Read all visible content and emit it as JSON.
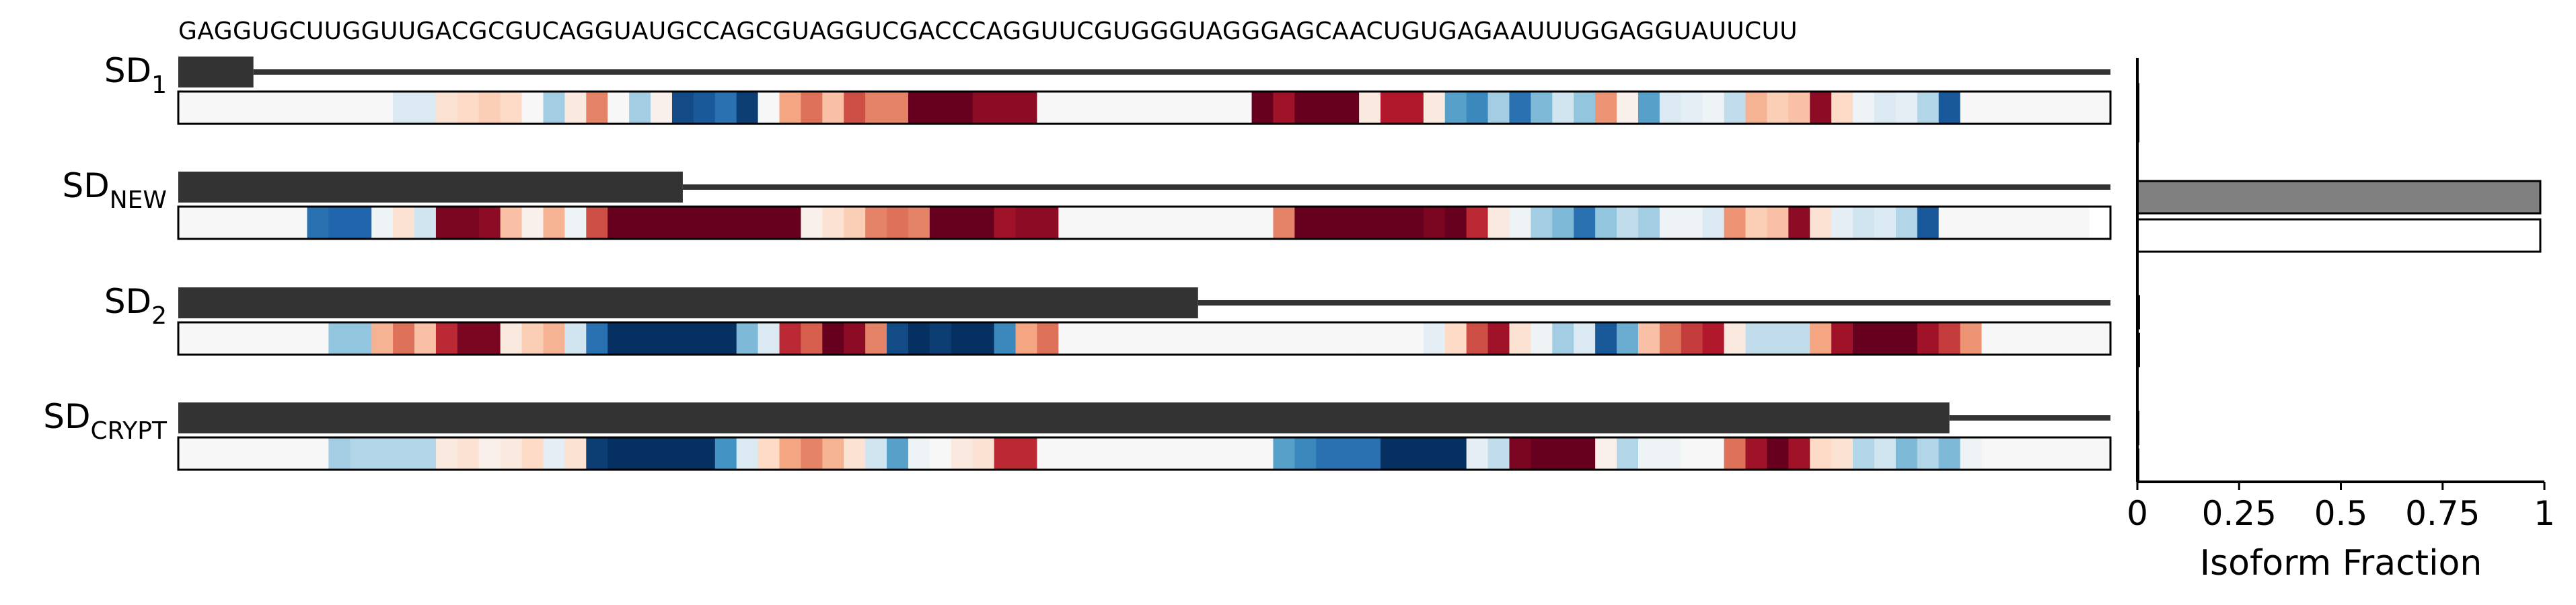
{
  "chart_data": [
    {
      "type": "heatmap",
      "sequence": "GAGGUGCUUGGUUGACGCGUCAGGUAUGCCAGCGUAGGUCGACCCAGGUUCGUGGGUAGGGAGCAACUGUGAGAAUUUGGAGGUAUUCUU",
      "rows": [
        {
          "label_main": "SD",
          "label_sub": "1",
          "exon_end_index": 3,
          "heat_values": [
            0,
            0,
            0,
            0,
            0,
            0,
            0,
            0,
            0,
            0,
            -0.15,
            -0.15,
            0.15,
            0.2,
            0.25,
            0.2,
            0,
            -0.35,
            0.1,
            0.5,
            0,
            -0.35,
            0.05,
            -0.9,
            -0.85,
            -0.75,
            -0.95,
            0,
            0.4,
            0.55,
            0.3,
            0.65,
            0.5,
            0.5,
            1,
            1,
            1,
            0.9,
            0.9,
            0.9,
            0,
            0,
            0,
            0,
            0,
            0,
            0,
            0,
            0,
            0,
            1,
            0.85,
            1,
            1,
            1,
            0.1,
            0.8,
            0.8,
            0.1,
            -0.55,
            -0.65,
            -0.35,
            -0.75,
            -0.45,
            -0.2,
            -0.4,
            0.45,
            0.05,
            -0.55,
            -0.15,
            -0.1,
            -0.05,
            -0.25,
            0.35,
            0.25,
            0.3,
            0.9,
            0.2,
            -0.05,
            -0.15,
            -0.1,
            -0.3,
            -0.85,
            0,
            0,
            0,
            0,
            0,
            0,
            0
          ]
        },
        {
          "label_main": "SD",
          "label_sub": "NEW",
          "exon_end_index": 23,
          "heat_values": [
            0,
            0,
            0,
            0,
            0,
            0,
            -0.75,
            -0.8,
            -0.8,
            -0.05,
            0.15,
            -0.2,
            0.95,
            0.95,
            0.9,
            0.3,
            0.05,
            0.35,
            -0.05,
            0.65,
            1,
            1,
            1,
            1,
            1,
            1,
            1,
            1,
            1,
            0.05,
            0.15,
            0.25,
            0.5,
            0.55,
            0.5,
            1,
            1,
            1,
            0.85,
            0.9,
            0.9,
            0,
            0,
            0,
            0,
            0,
            0,
            0,
            0,
            0,
            0,
            0.5,
            1,
            1,
            1,
            1,
            1,
            1,
            0.95,
            1,
            0.75,
            0.1,
            -0.05,
            -0.35,
            -0.45,
            -0.75,
            -0.4,
            -0.25,
            -0.35,
            -0.05,
            -0.05,
            -0.15,
            0.45,
            0.25,
            0.3,
            0.9,
            0.15,
            -0.1,
            -0.2,
            -0.15,
            -0.3,
            -0.85,
            0,
            0,
            0,
            0,
            0,
            0,
            0
          ]
        },
        {
          "label_main": "SD",
          "label_sub": "2",
          "exon_end_index": 47,
          "heat_values": [
            0,
            0,
            0,
            0,
            0,
            0,
            0,
            -0.4,
            -0.4,
            0.35,
            0.55,
            0.3,
            0.75,
            0.95,
            0.95,
            0.1,
            0.25,
            0.35,
            -0.2,
            -0.75,
            -1,
            -1,
            -1,
            -1,
            -1,
            -1,
            -0.45,
            -0.15,
            0.75,
            0.6,
            1,
            0.9,
            0.5,
            -0.9,
            -1,
            -0.95,
            -1,
            -1,
            -0.65,
            0.4,
            0.55,
            0,
            0,
            0,
            0,
            0,
            0,
            0,
            0,
            0,
            0,
            0,
            0,
            0,
            0,
            0,
            0,
            0,
            -0.1,
            0.2,
            0.65,
            0.85,
            0.15,
            -0.05,
            -0.35,
            -0.15,
            -0.85,
            -0.5,
            0.3,
            0.55,
            0.7,
            0.8,
            0.1,
            -0.25,
            -0.25,
            -0.25,
            0.4,
            0.85,
            1,
            1,
            1,
            0.85,
            0.7,
            0.45,
            0,
            0,
            0,
            0,
            0,
            0
          ]
        },
        {
          "label_main": "SD",
          "label_sub": "CRYPT",
          "exon_end_index": 82,
          "heat_values": [
            0,
            0,
            0,
            0,
            0,
            0,
            0,
            -0.35,
            -0.3,
            -0.3,
            -0.3,
            -0.3,
            0.1,
            0.15,
            0.05,
            0.1,
            0.2,
            -0.1,
            0.15,
            -0.95,
            -1,
            -1,
            -1,
            -1,
            -1,
            -0.6,
            -0.15,
            0.2,
            0.4,
            0.5,
            0.35,
            0.15,
            -0.2,
            -0.55,
            -0.05,
            0,
            0.1,
            0.15,
            0.75,
            0.75,
            0,
            0,
            0,
            0,
            0,
            0,
            0,
            0,
            0,
            0,
            0,
            -0.55,
            -0.65,
            -0.75,
            -0.75,
            -0.75,
            -1,
            -1,
            -1,
            -1,
            -0.1,
            -0.25,
            0.95,
            1,
            1,
            1,
            0.05,
            -0.3,
            -0.05,
            -0.05,
            0,
            0,
            0.55,
            0.85,
            1,
            0.85,
            0.2,
            0.15,
            -0.3,
            -0.2,
            -0.45,
            -0.3,
            -0.45,
            -0.05,
            0,
            0,
            0,
            0,
            0,
            0
          ]
        }
      ]
    },
    {
      "type": "bar",
      "orientation": "horizontal",
      "xlabel": "Isoform Fraction",
      "xlim": [
        0,
        1
      ],
      "xticks": [
        "0",
        "0.25",
        "0.5",
        "0.75",
        "1"
      ],
      "series": [
        {
          "fill": "#808080",
          "values": [
            0.002,
            0.99,
            0.004,
            0.0
          ]
        },
        {
          "fill": "#ffffff",
          "values": [
            0.002,
            0.99,
            0.004,
            0.0
          ]
        }
      ]
    }
  ],
  "colors": {
    "exon": "#333333",
    "intron": "#333333",
    "heat_negative": "#053061",
    "heat_neutral": "#f7f7f7",
    "heat_positive": "#67001f",
    "outline": "#000000"
  }
}
